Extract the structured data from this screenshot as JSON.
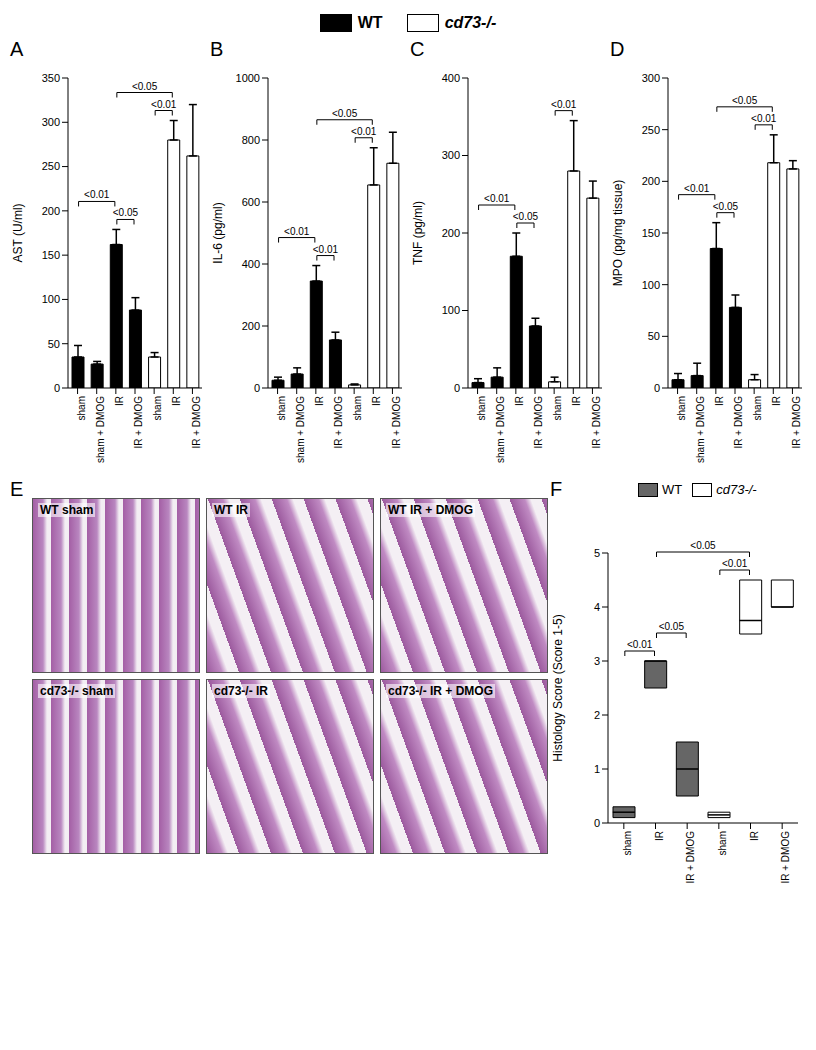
{
  "figure_legend": [
    {
      "name": "WT",
      "color": "#000000"
    },
    {
      "name": "cd73-/-",
      "color": "#ffffff"
    }
  ],
  "chart_data": [
    {
      "type": "bar",
      "title": "A",
      "ylabel": "AST (U/ml)",
      "categories": [
        "sham",
        "sham + DMOG",
        "IR",
        "IR + DMOG",
        "sham",
        "IR",
        "IR + DMOG"
      ],
      "values": [
        35,
        27,
        162,
        88,
        35,
        280,
        262
      ],
      "errors": [
        13,
        3,
        17,
        14,
        5,
        22,
        58
      ],
      "colors": [
        "#000000",
        "#000000",
        "#000000",
        "#000000",
        "#ffffff",
        "#ffffff",
        "#ffffff"
      ],
      "ylim": [
        0,
        350
      ],
      "yticks": [
        0,
        50,
        100,
        150,
        200,
        250,
        300,
        350
      ],
      "annotations": [
        {
          "from": 0,
          "to": 2,
          "text": "<0.01"
        },
        {
          "from": 2,
          "to": 3,
          "text": "<0.05"
        },
        {
          "from": 2,
          "to": 5,
          "text": "<0.05"
        },
        {
          "from": 4,
          "to": 5,
          "text": "<0.01"
        }
      ]
    },
    {
      "type": "bar",
      "title": "B",
      "ylabel": "IL-6 (pg/ml)",
      "categories": [
        "sham",
        "sham + DMOG",
        "IR",
        "IR + DMOG",
        "sham",
        "IR",
        "IR + DMOG"
      ],
      "values": [
        25,
        45,
        345,
        155,
        10,
        655,
        725
      ],
      "errors": [
        10,
        20,
        50,
        25,
        3,
        120,
        100
      ],
      "colors": [
        "#000000",
        "#000000",
        "#000000",
        "#000000",
        "#ffffff",
        "#ffffff",
        "#ffffff"
      ],
      "ylim": [
        0,
        1000
      ],
      "yticks": [
        0,
        200,
        400,
        600,
        800,
        1000
      ],
      "annotations": [
        {
          "from": 0,
          "to": 2,
          "text": "<0.01"
        },
        {
          "from": 2,
          "to": 3,
          "text": "<0.01"
        },
        {
          "from": 2,
          "to": 5,
          "text": "<0.05"
        },
        {
          "from": 4,
          "to": 5,
          "text": "<0.01"
        }
      ]
    },
    {
      "type": "bar",
      "title": "C",
      "ylabel": "TNF (pg/ml)",
      "categories": [
        "sham",
        "sham + DMOG",
        "IR",
        "IR + DMOG",
        "sham",
        "IR",
        "IR + DMOG"
      ],
      "values": [
        7,
        14,
        170,
        80,
        8,
        280,
        245
      ],
      "errors": [
        5,
        12,
        30,
        10,
        6,
        65,
        22
      ],
      "colors": [
        "#000000",
        "#000000",
        "#000000",
        "#000000",
        "#ffffff",
        "#ffffff",
        "#ffffff"
      ],
      "ylim": [
        0,
        400
      ],
      "yticks": [
        0,
        100,
        200,
        300,
        400
      ],
      "annotations": [
        {
          "from": 0,
          "to": 2,
          "text": "<0.01"
        },
        {
          "from": 2,
          "to": 3,
          "text": "<0.05"
        },
        {
          "from": 4,
          "to": 5,
          "text": "<0.01"
        }
      ]
    },
    {
      "type": "bar",
      "title": "D",
      "ylabel": "MPO (pg/mg tissue)",
      "categories": [
        "sham",
        "sham + DMOG",
        "IR",
        "IR + DMOG",
        "sham",
        "IR",
        "IR + DMOG"
      ],
      "values": [
        8,
        12,
        135,
        78,
        8,
        218,
        212
      ],
      "errors": [
        6,
        12,
        25,
        12,
        5,
        27,
        8
      ],
      "colors": [
        "#000000",
        "#000000",
        "#000000",
        "#000000",
        "#ffffff",
        "#ffffff",
        "#ffffff"
      ],
      "ylim": [
        0,
        300
      ],
      "yticks": [
        0,
        50,
        100,
        150,
        200,
        250,
        300
      ],
      "annotations": [
        {
          "from": 0,
          "to": 2,
          "text": "<0.01"
        },
        {
          "from": 2,
          "to": 3,
          "text": "<0.05"
        },
        {
          "from": 2,
          "to": 5,
          "text": "<0.05"
        },
        {
          "from": 4,
          "to": 5,
          "text": "<0.01"
        }
      ]
    },
    {
      "type": "range_bar",
      "title": "F",
      "ylabel": "Histology Score (Score 1-5)",
      "categories": [
        "sham",
        "IR",
        "IR + DMOG",
        "sham",
        "IR",
        "IR + DMOG"
      ],
      "series": [
        {
          "name": "WT",
          "color": "#666666",
          "values": [
            [
              0.1,
              0.3
            ],
            [
              2.5,
              3.0
            ],
            [
              0.5,
              1.5
            ],
            null,
            null,
            null
          ],
          "medians": [
            0.2,
            3.0,
            1.0,
            null,
            null,
            null
          ]
        },
        {
          "name": "cd73-/-",
          "color": "#ffffff",
          "values": [
            null,
            null,
            null,
            [
              0.1,
              0.2
            ],
            [
              3.5,
              4.5
            ],
            [
              4.0,
              4.5
            ]
          ],
          "medians": [
            null,
            null,
            null,
            0.15,
            3.75,
            4.0
          ]
        }
      ],
      "ylim": [
        0,
        5
      ],
      "yticks": [
        0,
        1,
        2,
        3,
        4,
        5
      ],
      "annotations": [
        {
          "from": 0,
          "to": 1,
          "text": "<0.01"
        },
        {
          "from": 1,
          "to": 2,
          "text": "<0.05"
        },
        {
          "from": 1,
          "to": 4,
          "text": "<0.05"
        },
        {
          "from": 3,
          "to": 4,
          "text": "<0.01"
        }
      ]
    }
  ],
  "histology": {
    "title": "E",
    "images": [
      "WT sham",
      "WT IR",
      "WT IR + DMOG",
      "cd73-/- sham",
      "cd73-/- IR",
      "cd73-/- IR + DMOG"
    ]
  }
}
